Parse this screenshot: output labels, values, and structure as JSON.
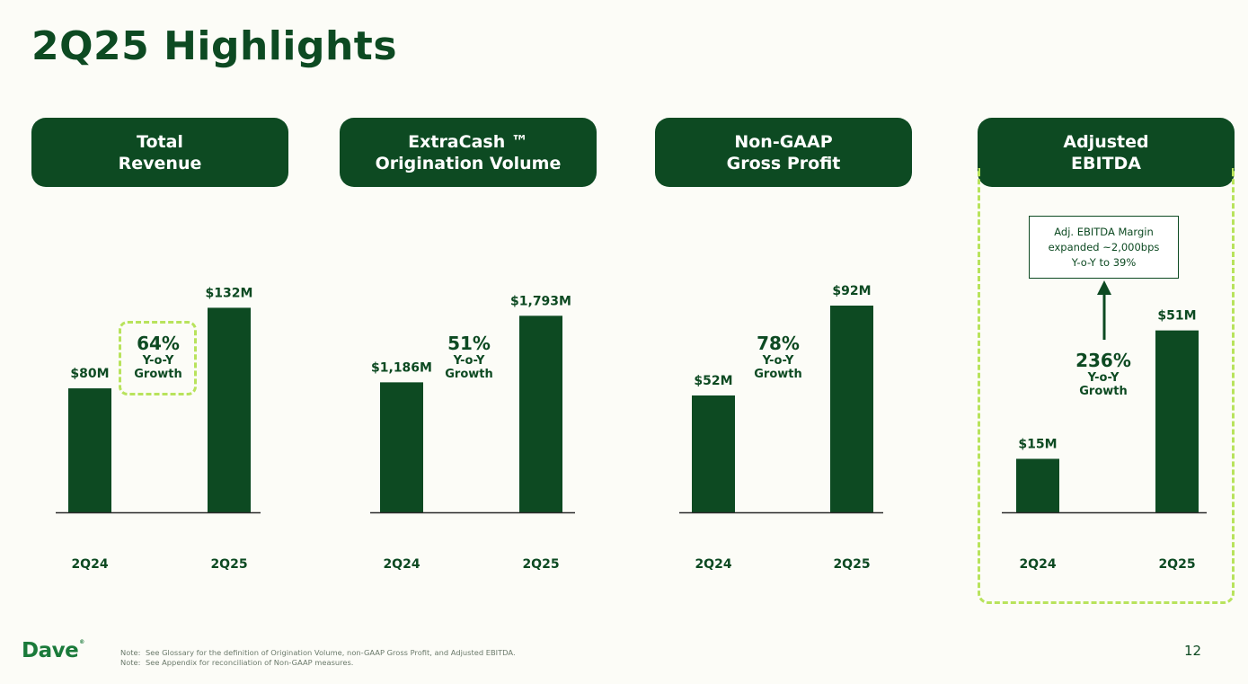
{
  "page": {
    "title": "2Q25 Highlights",
    "page_number": "12",
    "logo_text": "Dave",
    "logo_mark": "®",
    "notes": [
      {
        "prefix": "Note:",
        "text": "See Glossary for the definition of Origination Volume, non-GAAP Gross Profit, and Adjusted EBITDA."
      },
      {
        "prefix": "Note:",
        "text": "See Appendix for reconciliation of Non-GAAP measures."
      }
    ]
  },
  "colors": {
    "bar": "#0d4a22",
    "accent_dashed": "#b8e35c",
    "background": "#fcfcf7"
  },
  "panels": [
    {
      "header_line1": "Total",
      "header_line2": "Revenue",
      "growth_pct": "64%",
      "growth_label1": "Y-o-Y",
      "growth_label2": "Growth"
    },
    {
      "header_line1": "ExtraCash ™",
      "header_line2": "Origination Volume",
      "growth_pct": "51%",
      "growth_label1": "Y-o-Y",
      "growth_label2": "Growth"
    },
    {
      "header_line1": "Non-GAAP",
      "header_line2": "Gross Profit",
      "growth_pct": "78%",
      "growth_label1": "Y-o-Y",
      "growth_label2": "Growth"
    },
    {
      "header_line1": "Adjusted",
      "header_line2": "EBITDA",
      "growth_pct": "236%",
      "growth_label1": "Y-o-Y",
      "growth_label2": "Growth"
    }
  ],
  "callout": {
    "line1": "Adj. EBITDA Margin",
    "line2": "expanded ~2,000bps",
    "line3": "Y-o-Y to 39%"
  },
  "chart_data": [
    {
      "type": "bar",
      "title": "Total Revenue",
      "unit": "$M",
      "categories": [
        "2Q24",
        "2Q25"
      ],
      "values": [
        80,
        132
      ],
      "data_labels": [
        "$80M",
        "$132M"
      ],
      "ylim": [
        0,
        145
      ]
    },
    {
      "type": "bar",
      "title": "ExtraCash ™ Origination Volume",
      "unit": "$M",
      "categories": [
        "2Q24",
        "2Q25"
      ],
      "values": [
        1186,
        1793
      ],
      "data_labels": [
        "$1,186M",
        "$1,793M"
      ],
      "ylim": [
        0,
        2050
      ]
    },
    {
      "type": "bar",
      "title": "Non-GAAP Gross Profit",
      "unit": "$M",
      "categories": [
        "2Q24",
        "2Q25"
      ],
      "values": [
        52,
        92
      ],
      "data_labels": [
        "$52M",
        "$92M"
      ],
      "ylim": [
        0,
        100
      ]
    },
    {
      "type": "bar",
      "title": "Adjusted EBITDA",
      "unit": "$M",
      "categories": [
        "2Q24",
        "2Q25"
      ],
      "values": [
        15,
        51
      ],
      "data_labels": [
        "$15M",
        "$51M"
      ],
      "ylim": [
        0,
        63
      ]
    }
  ]
}
